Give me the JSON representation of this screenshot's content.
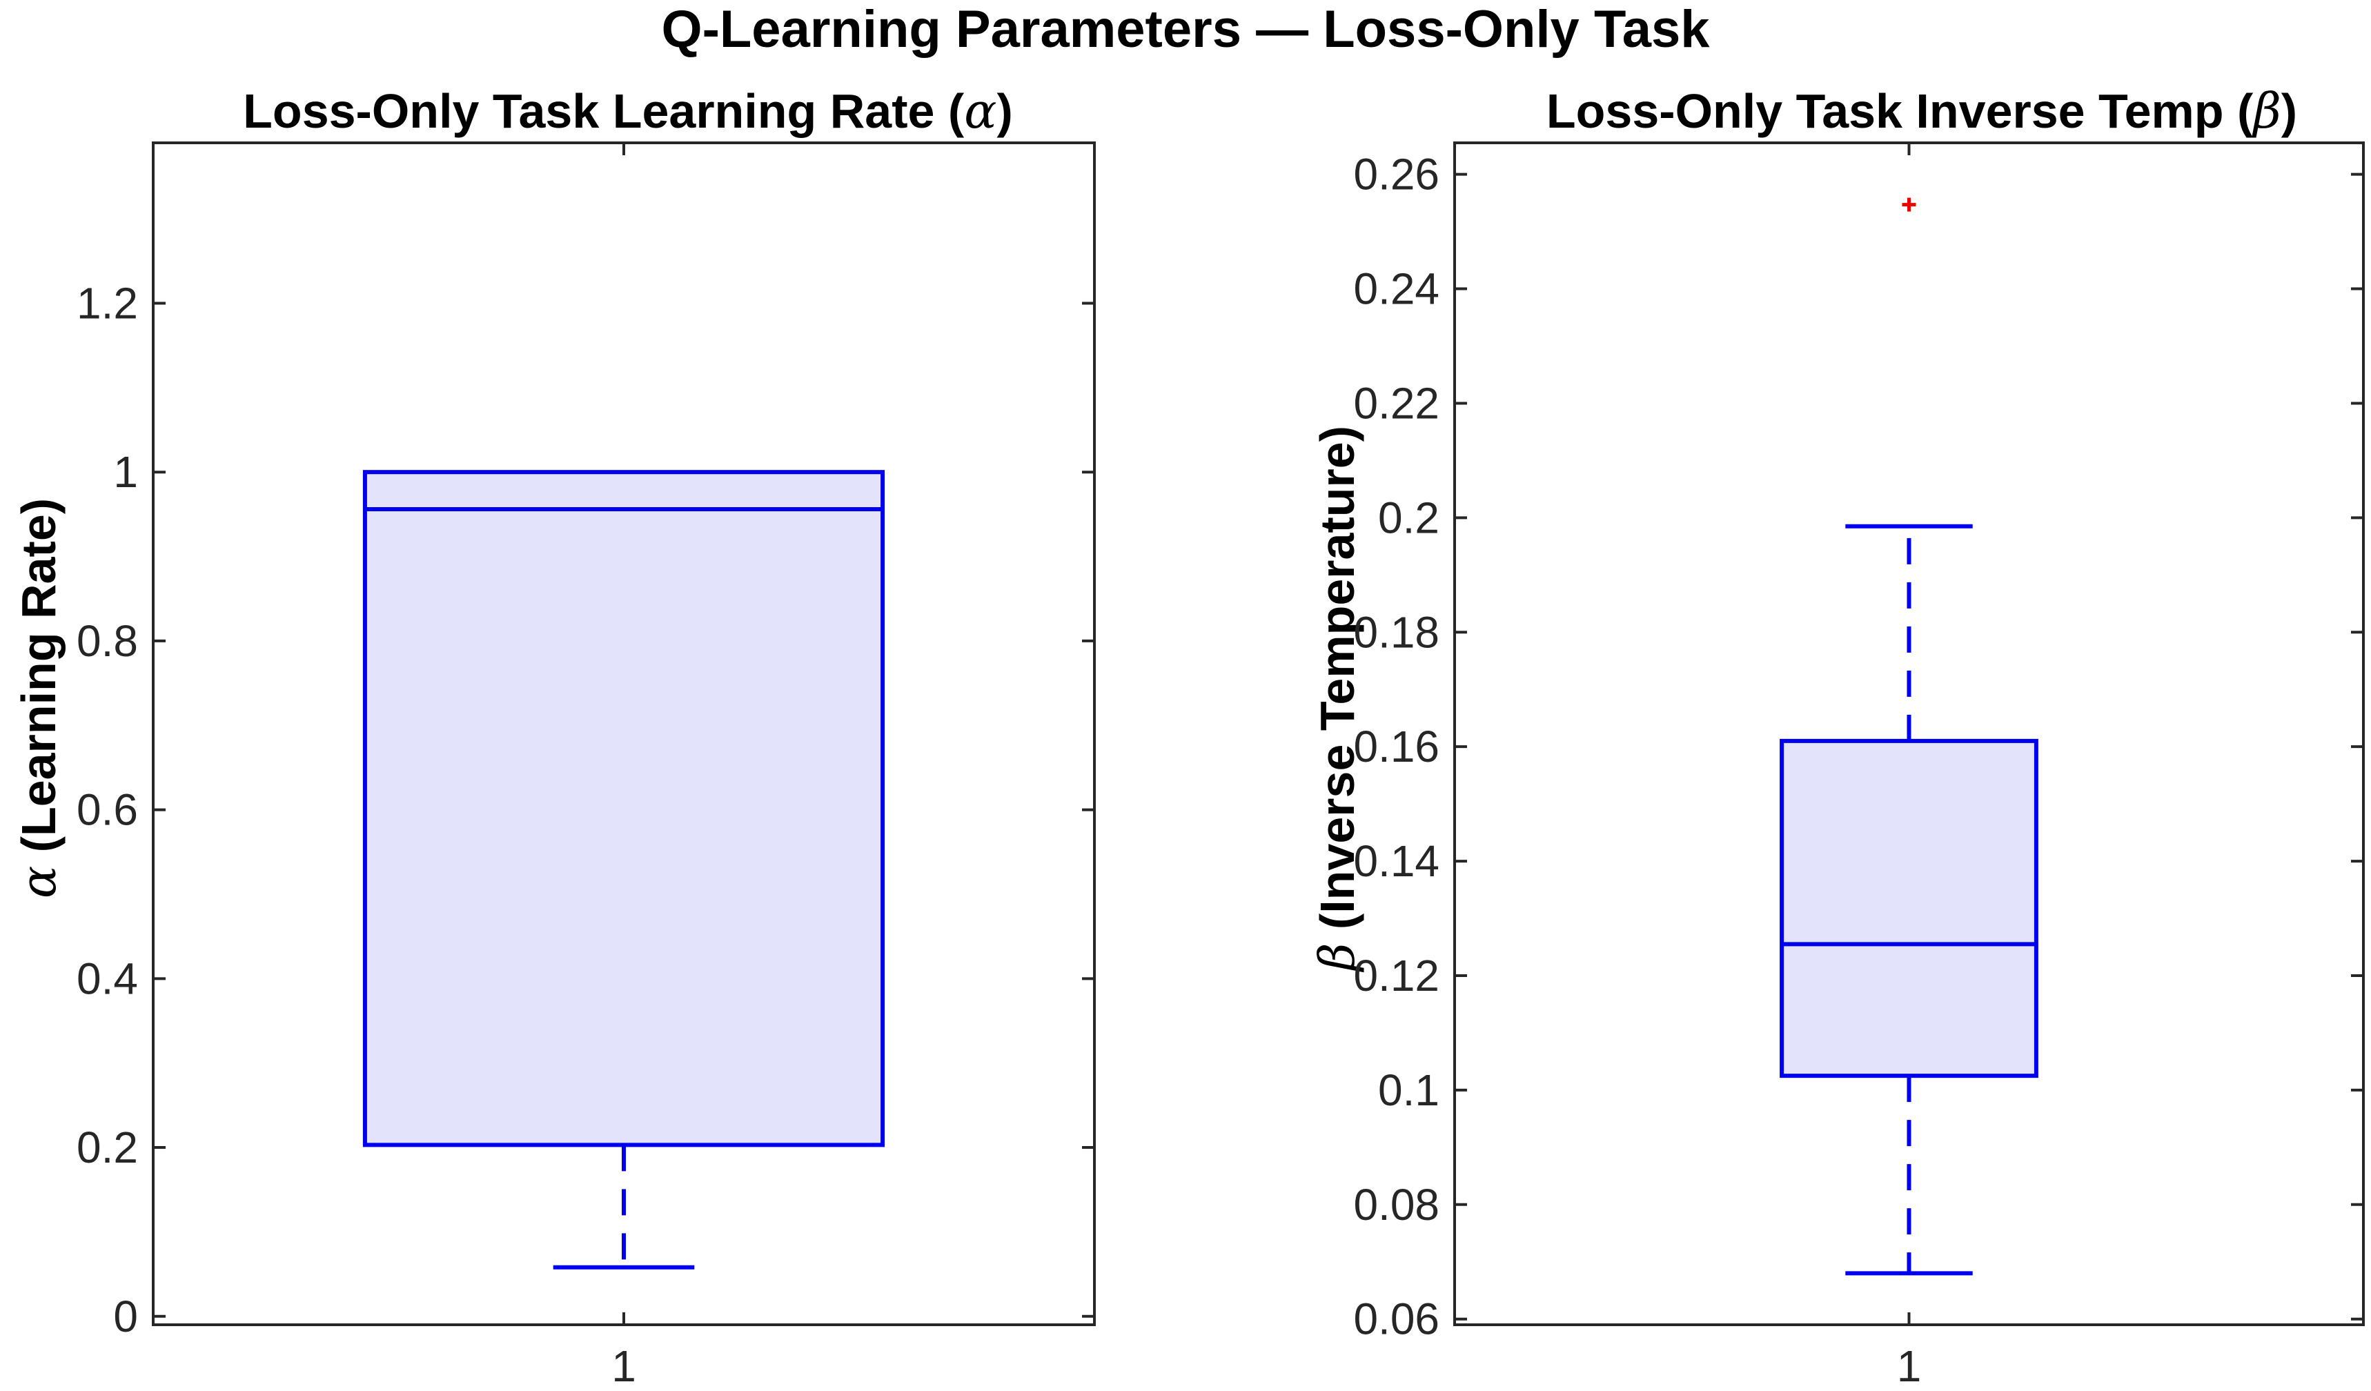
{
  "figure_title": "Q-Learning Parameters — Loss-Only Task",
  "colors": {
    "box_edge": "#0000ee",
    "box_fill": "#e3e3fb",
    "outlier": "#ee0000",
    "axes": "#262626"
  },
  "chart_data": [
    {
      "type": "box",
      "title": "Loss-Only Task Learning Rate (α)",
      "title_text": "Loss-Only Task Learning Rate (",
      "title_symbol": "α",
      "title_close": ")",
      "ylabel_symbol": "α",
      "ylabel_text": " (Learning Rate)",
      "xlabel": "",
      "ylim": [
        -0.01,
        1.39
      ],
      "yticks": [
        0,
        0.2,
        0.4,
        0.6,
        0.8,
        1,
        1.2
      ],
      "ytick_labels": [
        "0",
        "0.2",
        "0.4",
        "0.6",
        "0.8",
        "1",
        "1.2"
      ],
      "xticks": [
        1
      ],
      "xtick_labels": [
        "1"
      ],
      "grid": false,
      "boxes": [
        {
          "x": 1,
          "whisker_low": 0.058,
          "q1": 0.203,
          "median": 0.956,
          "q3": 1.0,
          "whisker_high": 1.0,
          "outliers": []
        }
      ]
    },
    {
      "type": "box",
      "title": "Loss-Only Task Inverse Temp (β)",
      "title_text": "Loss-Only Task Inverse Temp (",
      "title_symbol": "β",
      "title_close": ")",
      "ylabel_symbol": "β",
      "ylabel_text": " (Inverse Temperature)",
      "xlabel": "",
      "ylim": [
        0.059,
        0.2655
      ],
      "yticks": [
        0.06,
        0.08,
        0.1,
        0.12,
        0.14,
        0.16,
        0.18,
        0.2,
        0.22,
        0.24,
        0.26
      ],
      "ytick_labels": [
        "0.06",
        "0.08",
        "0.1",
        "0.12",
        "0.14",
        "0.16",
        "0.18",
        "0.2",
        "0.22",
        "0.24",
        "0.26"
      ],
      "xticks": [
        1
      ],
      "xtick_labels": [
        "1"
      ],
      "grid": false,
      "boxes": [
        {
          "x": 1,
          "whisker_low": 0.068,
          "q1": 0.1025,
          "median": 0.1255,
          "q3": 0.161,
          "whisker_high": 0.1985,
          "outliers": [
            0.2547
          ]
        }
      ]
    }
  ]
}
